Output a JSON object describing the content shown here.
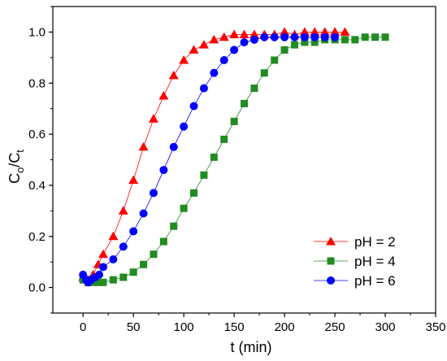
{
  "chart_data": {
    "type": "scatter",
    "xlabel": "t (min)",
    "ylabel_main": "C",
    "ylabel_sub1": "o",
    "ylabel_sep": "/C",
    "ylabel_sub2": "t",
    "xlim": [
      -30,
      350
    ],
    "ylim": [
      -0.1,
      1.1
    ],
    "xticks": [
      0,
      50,
      100,
      150,
      200,
      250,
      300,
      350
    ],
    "yticks": [
      0.0,
      0.2,
      0.4,
      0.6,
      0.8,
      1.0
    ],
    "xtick_labels": [
      "0",
      "50",
      "100",
      "150",
      "200",
      "250",
      "300",
      "350"
    ],
    "ytick_labels": [
      "0.0",
      "0.2",
      "0.4",
      "0.6",
      "0.8",
      "1.0"
    ],
    "legend_position": "bottom-right",
    "series": [
      {
        "name": "pH = 2",
        "marker": "triangle",
        "color": "#ff0000",
        "x": [
          0,
          2,
          5,
          10,
          15,
          20,
          30,
          40,
          50,
          60,
          70,
          80,
          90,
          100,
          110,
          120,
          130,
          140,
          150,
          160,
          170,
          180,
          190,
          200,
          210,
          220,
          230,
          240,
          250,
          260
        ],
        "y": [
          0.04,
          0.03,
          0.03,
          0.05,
          0.09,
          0.13,
          0.2,
          0.3,
          0.42,
          0.55,
          0.66,
          0.75,
          0.83,
          0.89,
          0.93,
          0.95,
          0.97,
          0.98,
          0.99,
          0.99,
          0.99,
          0.99,
          0.99,
          1.0,
          0.99,
          1.0,
          1.0,
          1.0,
          1.0,
          1.0
        ]
      },
      {
        "name": "pH = 4",
        "marker": "square",
        "color": "#228b22",
        "x": [
          0,
          5,
          10,
          15,
          20,
          30,
          40,
          50,
          60,
          70,
          80,
          90,
          100,
          110,
          120,
          130,
          140,
          150,
          160,
          170,
          180,
          190,
          200,
          210,
          220,
          230,
          240,
          250,
          260,
          270,
          280,
          290,
          300
        ],
        "y": [
          0.03,
          0.02,
          0.02,
          0.02,
          0.02,
          0.03,
          0.04,
          0.06,
          0.09,
          0.13,
          0.18,
          0.24,
          0.31,
          0.37,
          0.44,
          0.51,
          0.58,
          0.65,
          0.72,
          0.78,
          0.84,
          0.89,
          0.93,
          0.95,
          0.96,
          0.96,
          0.97,
          0.97,
          0.97,
          0.97,
          0.98,
          0.98,
          0.98
        ]
      },
      {
        "name": "pH = 6",
        "marker": "circle",
        "color": "#0000ff",
        "x": [
          0,
          3,
          5,
          8,
          12,
          16,
          20,
          30,
          40,
          50,
          60,
          70,
          80,
          90,
          100,
          110,
          120,
          130,
          140,
          150,
          160,
          170,
          180,
          190,
          200,
          210,
          220,
          230,
          240,
          250
        ],
        "y": [
          0.05,
          0.03,
          0.02,
          0.03,
          0.04,
          0.05,
          0.08,
          0.11,
          0.16,
          0.22,
          0.29,
          0.37,
          0.46,
          0.55,
          0.63,
          0.71,
          0.78,
          0.84,
          0.89,
          0.93,
          0.96,
          0.97,
          0.98,
          0.98,
          0.98,
          0.98,
          0.98,
          0.98,
          0.98,
          0.98
        ]
      }
    ]
  }
}
